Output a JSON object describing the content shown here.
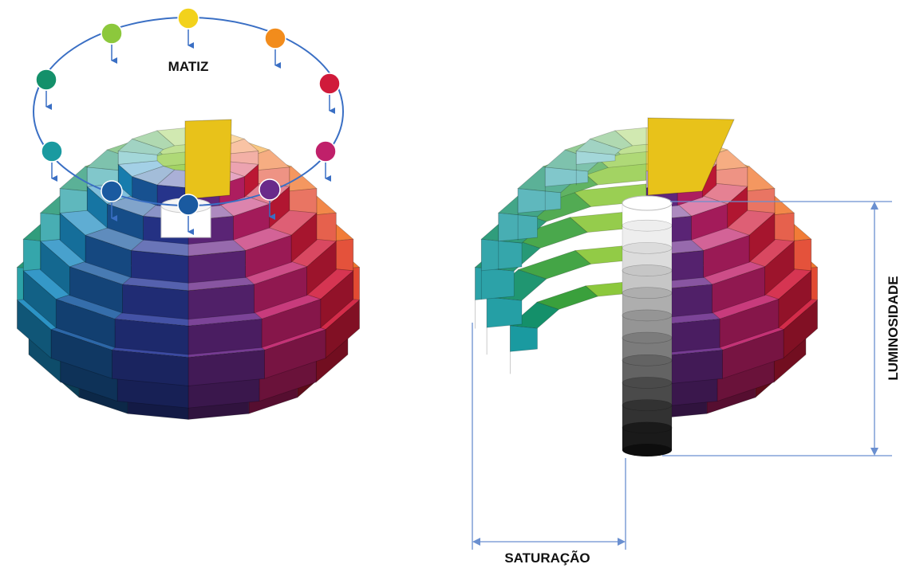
{
  "labels": {
    "hue": "MATIZ",
    "lightness": "LUMINOSIDADE",
    "saturation": "SATURAÇÃO"
  },
  "hue_ring": {
    "stroke_color": "#3a6fc4",
    "markers": [
      {
        "name": "yellow",
        "color": "#f2d21c"
      },
      {
        "name": "orange",
        "color": "#f28c1c"
      },
      {
        "name": "red",
        "color": "#d01a3a"
      },
      {
        "name": "magenta",
        "color": "#c0206a"
      },
      {
        "name": "purple",
        "color": "#6a2a8a"
      },
      {
        "name": "blue",
        "color": "#1a5aa0"
      },
      {
        "name": "blue",
        "color": "#1a5aa0"
      },
      {
        "name": "teal",
        "color": "#1a9aa0"
      },
      {
        "name": "green",
        "color": "#14906a"
      },
      {
        "name": "yellow-green",
        "color": "#8cc83c"
      }
    ]
  },
  "solid": {
    "hue_colors": [
      "#f2d21c",
      "#f29a1c",
      "#ef6a1c",
      "#e03a20",
      "#d01a3a",
      "#c0206a",
      "#6a2a8a",
      "#2a3a9a",
      "#1a5aa0",
      "#1a8ac0",
      "#1a9aa0",
      "#14906a",
      "#3aa03c",
      "#8cc83c"
    ]
  },
  "lightness_column": {
    "steps": [
      "#ffffff",
      "#eeeeee",
      "#dcdcdc",
      "#c6c6c6",
      "#aeaeae",
      "#959595",
      "#7c7c7c",
      "#636363",
      "#4a4a4a",
      "#323232",
      "#1a1a1a"
    ]
  },
  "dimension_color": "#6a8fd0"
}
